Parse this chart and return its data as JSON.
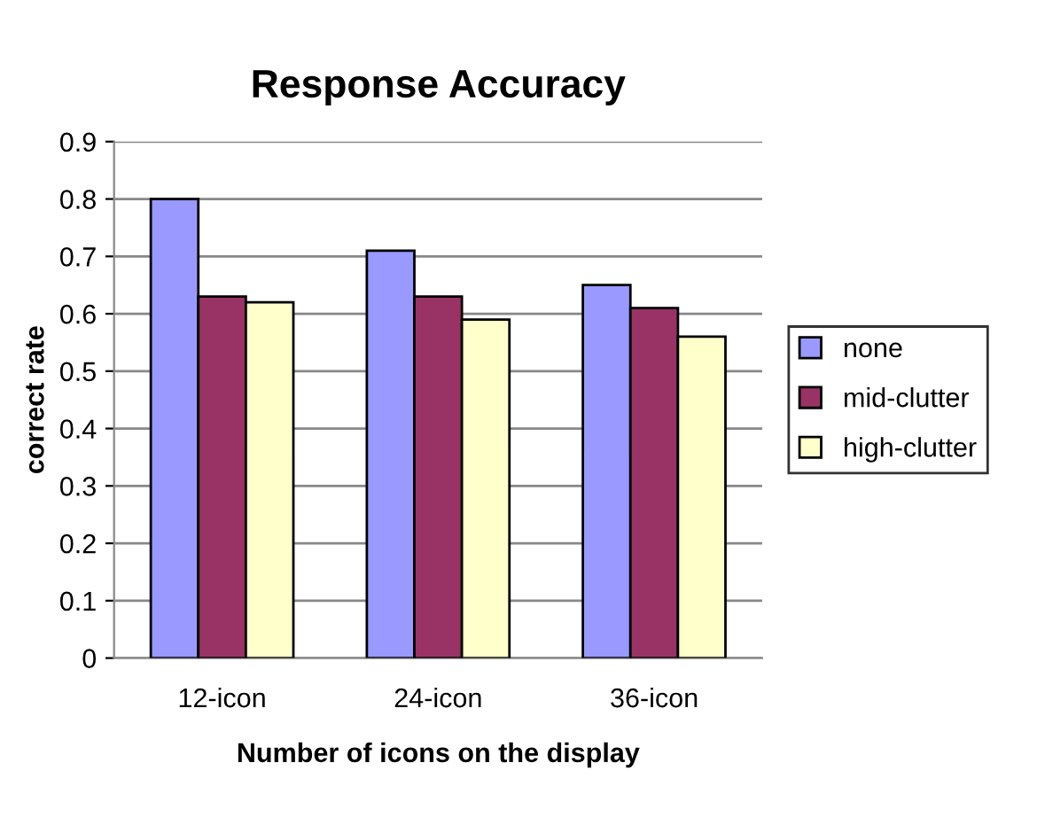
{
  "chart_data": {
    "type": "bar",
    "title": "Response Accuracy",
    "xlabel": "Number of icons on the display",
    "ylabel": "correct rate",
    "categories": [
      "12-icon",
      "24-icon",
      "36-icon"
    ],
    "series": [
      {
        "name": "none",
        "color": "#9999ff",
        "values": [
          0.8,
          0.71,
          0.65
        ]
      },
      {
        "name": "mid-clutter",
        "color": "#993366",
        "values": [
          0.63,
          0.63,
          0.61
        ]
      },
      {
        "name": "high-clutter",
        "color": "#ffffcc",
        "values": [
          0.62,
          0.59,
          0.56
        ]
      }
    ],
    "ylim": [
      0,
      0.9
    ],
    "yticks": [
      0,
      0.1,
      0.2,
      0.3,
      0.4,
      0.5,
      0.6,
      0.7,
      0.8,
      0.9
    ],
    "grid": "y",
    "legend": "right"
  }
}
